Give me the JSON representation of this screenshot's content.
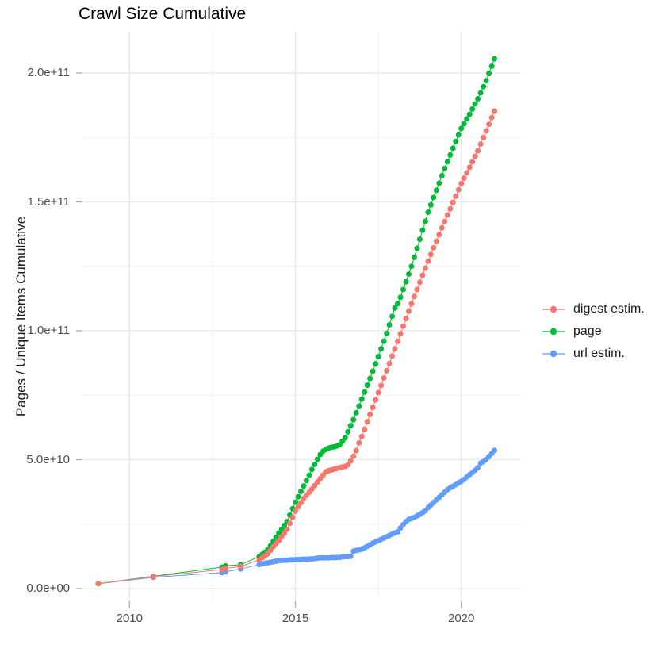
{
  "title": "Crawl Size Cumulative",
  "y_axis": {
    "title": "Pages / Unique Items Cumulative",
    "ticks": [
      {
        "label": "0.0e+00",
        "value_e9": 0
      },
      {
        "label": "5.0e+10",
        "value_e9": 50
      },
      {
        "label": "1.0e+11",
        "value_e9": 100
      },
      {
        "label": "1.5e+11",
        "value_e9": 150
      },
      {
        "label": "2.0e+11",
        "value_e9": 200
      }
    ]
  },
  "x_axis": {
    "title": "",
    "ticks": [
      {
        "label": "2010",
        "year": 2010
      },
      {
        "label": "2015",
        "year": 2015
      },
      {
        "label": "2020",
        "year": 2020
      }
    ]
  },
  "legend": {
    "items": [
      {
        "id": "digest-estim",
        "label": "digest estim.",
        "color": "#F8766D"
      },
      {
        "id": "page",
        "label": "page",
        "color": "#00BA38"
      },
      {
        "id": "url-estim",
        "label": "url estim.",
        "color": "#619CFF"
      }
    ]
  },
  "colors": {
    "background": "#FFFFFF",
    "grid_major": "#E7E7E7",
    "grid_minor": "#F4F4F4",
    "tick_mark": "#ABABAB",
    "axis_text": "#4D4D4D",
    "title_text": "#000000"
  },
  "chart_data": {
    "type": "scatter",
    "title": "Crawl Size Cumulative",
    "xlabel": "",
    "ylabel": "Pages / Unique Items Cumulative",
    "x_unit": "year (decimal, crawl date)",
    "y_unit": "cumulative count, values given in units of 1e9",
    "xlim": [
      2008.6,
      2021.8
    ],
    "ylim_e9": [
      -5,
      216
    ],
    "grid": "major and minor, light gray on white",
    "legend_position": "right",
    "y_minor_gridlines_e9": [
      25,
      75,
      125,
      175
    ],
    "x_minor_gridlines_years": [
      2012.5,
      2017.5
    ],
    "x": [
      2009.06,
      2010.72,
      2012.79,
      2012.9,
      2013.35,
      2013.91,
      2014.0,
      2014.083,
      2014.167,
      2014.25,
      2014.333,
      2014.417,
      2014.5,
      2014.583,
      2014.667,
      2014.75,
      2014.833,
      2014.917,
      2015.0,
      2015.083,
      2015.167,
      2015.25,
      2015.333,
      2015.417,
      2015.5,
      2015.583,
      2015.667,
      2015.75,
      2015.833,
      2015.917,
      2016.0,
      2016.083,
      2016.167,
      2016.25,
      2016.333,
      2016.417,
      2016.5,
      2016.583,
      2016.667,
      2016.75,
      2016.833,
      2016.917,
      2017.0,
      2017.083,
      2017.167,
      2017.25,
      2017.333,
      2017.417,
      2017.5,
      2017.583,
      2017.667,
      2017.75,
      2017.833,
      2017.917,
      2018.0,
      2018.083,
      2018.167,
      2018.25,
      2018.333,
      2018.417,
      2018.5,
      2018.583,
      2018.667,
      2018.75,
      2018.833,
      2018.917,
      2019.0,
      2019.083,
      2019.167,
      2019.25,
      2019.333,
      2019.417,
      2019.5,
      2019.583,
      2019.667,
      2019.75,
      2019.833,
      2019.917,
      2020.0,
      2020.083,
      2020.167,
      2020.25,
      2020.333,
      2020.417,
      2020.5,
      2020.583,
      2020.667,
      2020.75,
      2020.833,
      2020.917,
      2021.0
    ],
    "series": [
      {
        "name": "digest estim.",
        "id": "digest-estim",
        "color": "#F8766D",
        "draw_order": 3,
        "values_e9": [
          1.9,
          4.7,
          7.4,
          7.8,
          8.6,
          11.1,
          12.0,
          12.7,
          13.5,
          14.9,
          16.3,
          17.5,
          18.6,
          20.1,
          21.5,
          23.0,
          25.3,
          27.6,
          30.0,
          31.7,
          33.3,
          35.0,
          36.2,
          37.4,
          38.6,
          40.0,
          41.4,
          42.7,
          44.0,
          45.3,
          45.7,
          46.0,
          46.3,
          46.6,
          46.9,
          47.2,
          47.4,
          48.0,
          49.5,
          51.3,
          53.5,
          56.5,
          59.0,
          61.8,
          64.7,
          67.5,
          70.3,
          73.2,
          76.0,
          78.8,
          81.7,
          84.5,
          87.3,
          90.2,
          93.0,
          95.9,
          98.8,
          101.8,
          104.7,
          107.6,
          110.5,
          113.3,
          116.0,
          118.8,
          121.5,
          124.3,
          127.0,
          129.6,
          132.2,
          134.7,
          137.3,
          139.9,
          142.4,
          144.9,
          147.3,
          149.8,
          152.2,
          154.7,
          157.1,
          159.2,
          161.3,
          163.4,
          165.5,
          167.7,
          169.8,
          172.4,
          175.0,
          177.5,
          180.1,
          182.7,
          185.2
        ]
      },
      {
        "name": "page",
        "id": "page",
        "color": "#00BA38",
        "draw_order": 2,
        "values_e9": [
          1.9,
          4.8,
          8.3,
          8.8,
          9.3,
          12.4,
          13.3,
          14.1,
          15.0,
          16.6,
          18.3,
          19.9,
          21.5,
          23.0,
          24.5,
          26.0,
          28.5,
          31.0,
          33.5,
          35.6,
          37.7,
          39.8,
          41.9,
          44.0,
          46.2,
          48.2,
          50.2,
          52.0,
          53.3,
          54.0,
          54.5,
          54.8,
          55.0,
          55.3,
          55.8,
          57.2,
          58.5,
          60.8,
          63.2,
          65.5,
          68.2,
          70.8,
          73.5,
          76.2,
          78.9,
          81.5,
          84.3,
          87.2,
          90.0,
          93.0,
          96.0,
          99.0,
          102.3,
          105.6,
          108.8,
          110.5,
          113.0,
          116.0,
          119.0,
          122.0,
          125.0,
          128.5,
          132.0,
          135.5,
          139.0,
          142.5,
          146.0,
          148.8,
          151.7,
          154.5,
          157.3,
          160.2,
          163.0,
          165.6,
          168.2,
          170.8,
          173.4,
          176.0,
          178.5,
          180.3,
          182.2,
          184.0,
          186.0,
          188.0,
          190.0,
          192.3,
          194.7,
          197.0,
          199.8,
          202.6,
          205.5
        ]
      },
      {
        "name": "url estim.",
        "id": "url-estim",
        "color": "#619CFF",
        "draw_order": 1,
        "values_e9": [
          1.9,
          4.4,
          6.2,
          6.5,
          7.6,
          9.3,
          9.6,
          9.8,
          10.0,
          10.2,
          10.4,
          10.6,
          10.8,
          10.9,
          11.0,
          11.0,
          11.1,
          11.2,
          11.2,
          11.3,
          11.3,
          11.4,
          11.4,
          11.5,
          11.5,
          11.6,
          11.8,
          11.9,
          11.9,
          11.9,
          11.9,
          12.0,
          12.0,
          12.1,
          12.1,
          12.3,
          12.4,
          12.4,
          12.5,
          14.5,
          14.8,
          15.0,
          15.3,
          15.8,
          16.4,
          17.0,
          17.6,
          18.1,
          18.6,
          19.1,
          19.6,
          20.1,
          20.6,
          21.1,
          21.6,
          22.0,
          23.5,
          24.8,
          26.0,
          26.8,
          27.2,
          27.6,
          28.2,
          28.8,
          29.5,
          30.2,
          31.4,
          32.4,
          33.4,
          34.4,
          35.4,
          36.4,
          37.4,
          38.4,
          39.1,
          39.7,
          40.3,
          41.0,
          41.6,
          42.4,
          43.3,
          44.2,
          45.0,
          45.9,
          46.9,
          48.6,
          49.3,
          50.1,
          51.2,
          52.4,
          53.6
        ]
      }
    ]
  }
}
